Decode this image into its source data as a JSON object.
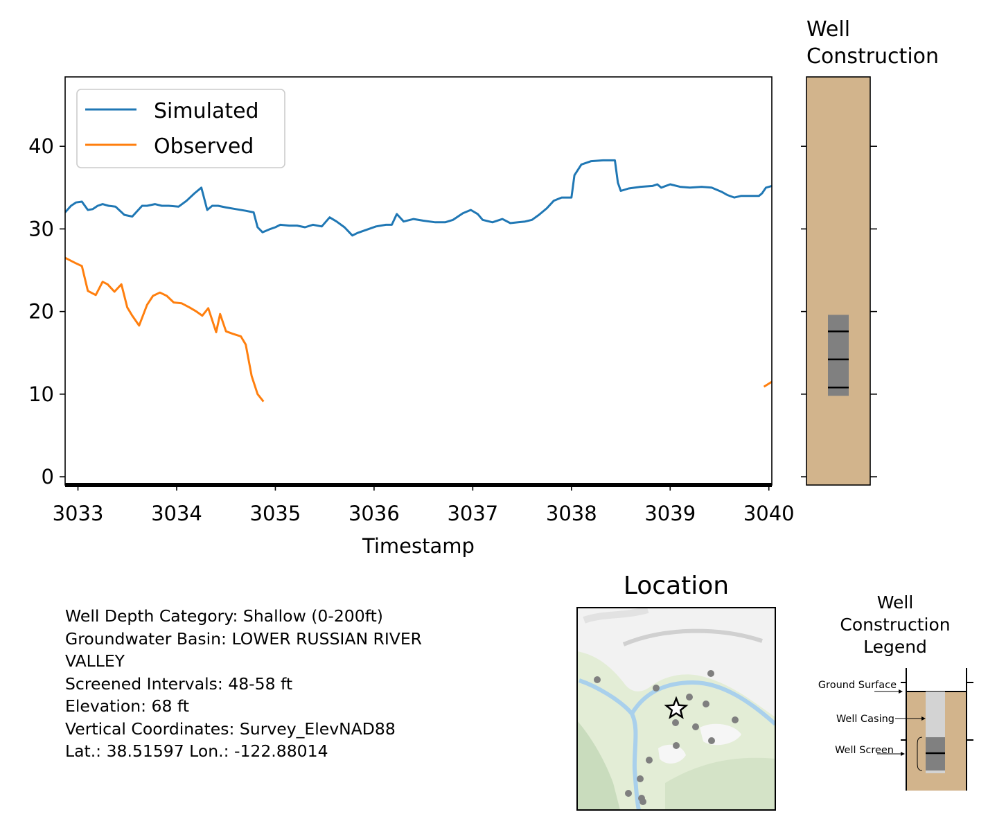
{
  "chart_data": [
    {
      "type": "line",
      "xlabel": "Timestamp",
      "ylabel": "",
      "xlim": [
        3032.87,
        3040.03
      ],
      "ylim": [
        -1.0,
        48.4
      ],
      "x_ticks": [
        3033,
        3034,
        3035,
        3036,
        3037,
        3038,
        3039,
        3040
      ],
      "y_ticks": [
        0,
        10,
        20,
        30,
        40
      ],
      "grid": false,
      "legend": "top-left",
      "series": [
        {
          "name": "Simulated",
          "color": "#1f77b4",
          "x": [
            3032.87,
            3032.93,
            3032.98,
            3033.04,
            3033.1,
            3033.15,
            3033.2,
            3033.25,
            3033.31,
            3033.38,
            3033.47,
            3033.55,
            3033.65,
            3033.7,
            3033.78,
            3033.85,
            3033.92,
            3034.02,
            3034.1,
            3034.18,
            3034.25,
            3034.31,
            3034.36,
            3034.42,
            3034.5,
            3034.6,
            3034.7,
            3034.78,
            3034.82,
            3034.87,
            3034.95,
            3035.0,
            3035.05,
            3035.14,
            3035.22,
            3035.3,
            3035.38,
            3035.47,
            3035.55,
            3035.62,
            3035.7,
            3035.78,
            3035.83,
            3035.9,
            3036.02,
            3036.12,
            3036.18,
            3036.23,
            3036.3,
            3036.4,
            3036.5,
            3036.62,
            3036.72,
            3036.8,
            3036.9,
            3036.98,
            3037.05,
            3037.1,
            3037.2,
            3037.3,
            3037.38,
            3037.46,
            3037.53,
            3037.6,
            3037.67,
            3037.75,
            3037.82,
            3037.9,
            3037.96,
            3038.0,
            3038.03,
            3038.1,
            3038.2,
            3038.32,
            3038.44,
            3038.47,
            3038.5,
            3038.58,
            3038.7,
            3038.82,
            3038.87,
            3038.91,
            3039.0,
            3039.1,
            3039.2,
            3039.32,
            3039.42,
            3039.52,
            3039.58,
            3039.65,
            3039.72,
            3039.8,
            3039.86,
            3039.9,
            3039.93,
            3039.97,
            3040.03
          ],
          "y": [
            32.0,
            32.8,
            33.2,
            33.3,
            32.3,
            32.4,
            32.8,
            33.0,
            32.8,
            32.7,
            31.7,
            31.5,
            32.8,
            32.8,
            33.0,
            32.8,
            32.8,
            32.7,
            33.4,
            34.3,
            35.0,
            32.3,
            32.8,
            32.8,
            32.6,
            32.4,
            32.2,
            32.0,
            30.2,
            29.6,
            30.0,
            30.2,
            30.5,
            30.4,
            30.4,
            30.2,
            30.5,
            30.3,
            31.4,
            30.9,
            30.2,
            29.2,
            29.5,
            29.8,
            30.3,
            30.5,
            30.5,
            31.8,
            30.9,
            31.2,
            31.0,
            30.8,
            30.8,
            31.1,
            31.9,
            32.3,
            31.8,
            31.1,
            30.8,
            31.2,
            30.7,
            30.8,
            30.9,
            31.1,
            31.7,
            32.5,
            33.4,
            33.8,
            33.8,
            33.8,
            36.5,
            37.8,
            38.2,
            38.3,
            38.3,
            35.6,
            34.6,
            34.9,
            35.1,
            35.2,
            35.4,
            35.0,
            35.4,
            35.1,
            35.0,
            35.1,
            35.0,
            34.5,
            34.1,
            33.8,
            34.0,
            34.0,
            34.0,
            34.0,
            34.3,
            35.0,
            35.2
          ]
        },
        {
          "name": "Observed",
          "color": "#ff7f0e",
          "segments": [
            {
              "x": [
                3032.87,
                3032.97,
                3033.04,
                3033.1,
                3033.18,
                3033.25,
                3033.3,
                3033.37,
                3033.44,
                3033.5,
                3033.55,
                3033.62,
                3033.7,
                3033.76,
                3033.83,
                3033.9,
                3033.97,
                3034.05,
                3034.13,
                3034.2,
                3034.26,
                3034.32,
                3034.4,
                3034.44,
                3034.5,
                3034.57,
                3034.65,
                3034.7,
                3034.76,
                3034.82,
                3034.88
              ],
              "y": [
                26.5,
                25.9,
                25.5,
                22.5,
                22.0,
                23.6,
                23.3,
                22.4,
                23.3,
                20.5,
                19.5,
                18.3,
                20.8,
                21.9,
                22.3,
                21.9,
                21.1,
                21.0,
                20.5,
                20.0,
                19.5,
                20.4,
                17.5,
                19.7,
                17.6,
                17.3,
                17.0,
                16.0,
                12.2,
                10.0,
                9.1
              ]
            },
            {
              "x": [
                3039.95,
                3040.03
              ],
              "y": [
                10.9,
                11.5
              ]
            }
          ]
        }
      ]
    },
    {
      "type": "diagram",
      "title": "Well\nConstruction",
      "ylim": [
        -1.0,
        48.4
      ],
      "y_ticks": [
        0,
        10,
        20,
        30,
        40
      ],
      "screen_interval": [
        9.8,
        19.6
      ],
      "screen_marks": [
        10.8,
        14.2,
        17.6
      ],
      "colors": {
        "soil": "#d2b48c",
        "screen": "#808080"
      }
    }
  ],
  "info_lines": [
    "Well Depth Category: Shallow (0-200ft)",
    "Groundwater Basin: LOWER RUSSIAN RIVER",
    "VALLEY",
    "Screened Intervals: 48-58 ft",
    "Elevation: 68 ft",
    "Vertical Coordinates: Survey_ElevNAD88",
    "Lat.: 38.51597 Lon.: -122.88014"
  ],
  "location_map": {
    "title": "Location",
    "marker": "star-icon",
    "colors": {
      "land": "#e3edd6",
      "river": "#a9d0ec",
      "urban": "#f2f2f2",
      "wells": "#7f7f7f"
    }
  },
  "legend_panel": {
    "title": "Well\nConstruction\nLegend",
    "labels": {
      "ground": "Ground Surface",
      "casing": "Well Casing",
      "screen": "Well Screen"
    }
  }
}
